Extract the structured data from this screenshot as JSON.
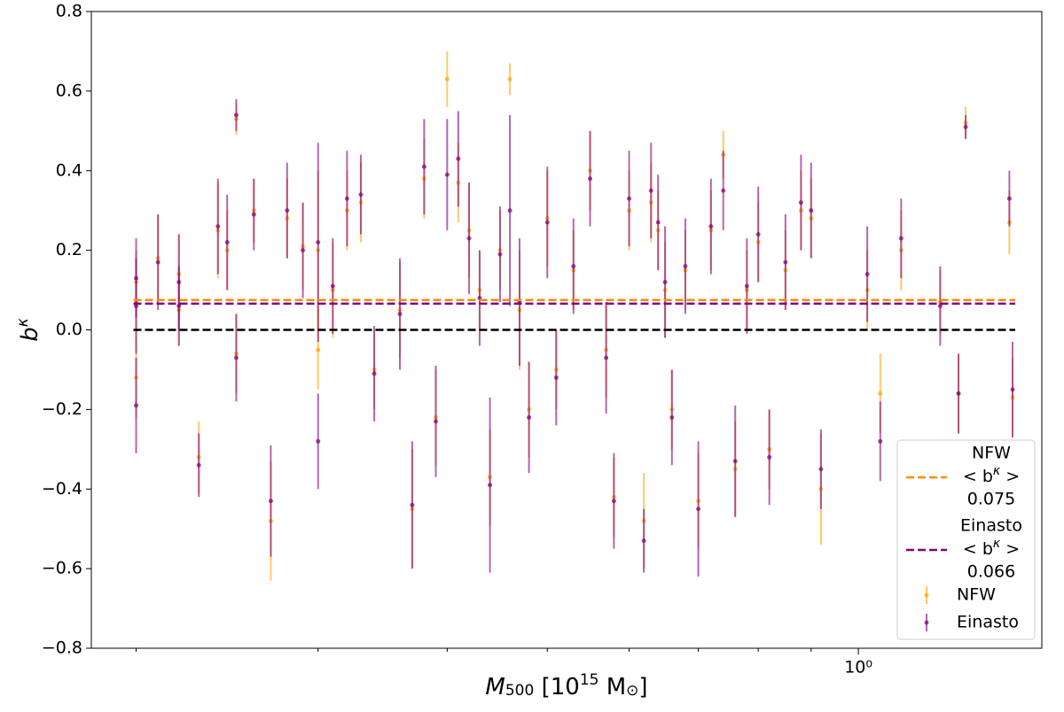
{
  "chart_data": {
    "type": "errorbar-scatter",
    "xlabel": [
      "M",
      "500",
      " [10",
      "15",
      " M",
      "⊙",
      "]"
    ],
    "ylabel": [
      "b",
      "κ"
    ],
    "xscale": "log",
    "xlim": [
      0.181,
      1.505
    ],
    "xticks": [
      {
        "value": 1,
        "label": "10⁰"
      }
    ],
    "xminorticks": [
      0.2,
      0.3,
      0.4,
      0.5,
      0.6,
      0.7,
      0.8,
      0.9
    ],
    "ylim": [
      -0.8,
      0.8
    ],
    "yticks": [
      {
        "value": -0.8,
        "label": "−0.8"
      },
      {
        "value": -0.6,
        "label": "−0.6"
      },
      {
        "value": -0.4,
        "label": "−0.4"
      },
      {
        "value": -0.2,
        "label": "−0.2"
      },
      {
        "value": 0,
        "label": "0.0"
      },
      0.2,
      0.4,
      0.6,
      0.8
    ],
    "reference_line": {
      "value": 0,
      "color": "#000000"
    },
    "mean_symbol": [
      "< b",
      "κ",
      " >"
    ],
    "mean_lines": [
      {
        "name": "NFW",
        "value": 0.075,
        "color": "#ff8c00"
      },
      {
        "name": "Einasto",
        "value": 0.066,
        "color": "#800080"
      }
    ],
    "legend": "lower right",
    "x": [
      0.2,
      0.2,
      0.2,
      0.21,
      0.22,
      0.22,
      0.23,
      0.24,
      0.245,
      0.25,
      0.25,
      0.26,
      0.27,
      0.28,
      0.29,
      0.3,
      0.3,
      0.31,
      0.32,
      0.33,
      0.34,
      0.36,
      0.37,
      0.38,
      0.39,
      0.4,
      0.41,
      0.42,
      0.43,
      0.44,
      0.45,
      0.46,
      0.47,
      0.48,
      0.5,
      0.51,
      0.53,
      0.55,
      0.57,
      0.58,
      0.6,
      0.62,
      0.63,
      0.64,
      0.65,
      0.66,
      0.68,
      0.7,
      0.72,
      0.74,
      0.76,
      0.78,
      0.8,
      0.82,
      0.85,
      0.88,
      0.9,
      0.92,
      1.02,
      1.05,
      1.1,
      1.2,
      1.25,
      1.27,
      1.4,
      1.41
    ],
    "series": [
      {
        "name": "NFW",
        "color": "#ffa500",
        "values": [
          0.07,
          -0.12,
          0.12,
          0.18,
          0.05,
          0.14,
          -0.32,
          0.25,
          0.2,
          0.53,
          -0.06,
          0.3,
          -0.48,
          0.28,
          0.21,
          0.2,
          -0.05,
          0.1,
          0.3,
          0.32,
          -0.1,
          0.05,
          -0.45,
          0.38,
          -0.22,
          0.63,
          0.37,
          0.25,
          0.1,
          -0.37,
          0.2,
          0.63,
          0.05,
          -0.2,
          0.28,
          -0.1,
          0.15,
          0.4,
          -0.05,
          -0.42,
          0.3,
          -0.48,
          0.32,
          0.25,
          0.1,
          -0.2,
          0.15,
          -0.43,
          0.25,
          0.44,
          -0.35,
          0.1,
          0.22,
          -0.3,
          0.15,
          0.3,
          0.28,
          -0.4,
          0.1,
          -0.16,
          0.2,
          0.07,
          -0.16,
          0.52,
          0.27,
          -0.17
        ],
        "errors": [
          0.1,
          0.1,
          0.08,
          0.11,
          0.09,
          0.1,
          0.09,
          0.12,
          0.1,
          0.04,
          0.1,
          0.08,
          0.15,
          0.1,
          0.11,
          0.2,
          0.1,
          0.12,
          0.1,
          0.1,
          0.1,
          0.12,
          0.15,
          0.1,
          0.12,
          0.07,
          0.1,
          0.12,
          0.1,
          0.12,
          0.1,
          0.04,
          0.15,
          0.12,
          0.12,
          0.1,
          0.1,
          0.1,
          0.12,
          0.1,
          0.1,
          0.12,
          0.1,
          0.1,
          0.12,
          0.1,
          0.1,
          0.12,
          0.1,
          0.06,
          0.12,
          0.1,
          0.1,
          0.1,
          0.1,
          0.1,
          0.1,
          0.14,
          0.1,
          0.1,
          0.1,
          0.08,
          0.1,
          0.04,
          0.08,
          0.1
        ]
      },
      {
        "name": "Einasto",
        "color": "#800080",
        "values": [
          0.06,
          -0.19,
          0.13,
          0.17,
          0.06,
          0.12,
          -0.34,
          0.26,
          0.22,
          0.54,
          -0.07,
          0.29,
          -0.43,
          0.3,
          0.2,
          0.22,
          -0.28,
          0.11,
          0.33,
          0.34,
          -0.11,
          0.04,
          -0.44,
          0.41,
          -0.23,
          0.39,
          0.43,
          0.23,
          0.08,
          -0.39,
          0.19,
          0.3,
          0.07,
          -0.22,
          0.27,
          -0.12,
          0.16,
          0.38,
          -0.07,
          -0.43,
          0.33,
          -0.53,
          0.35,
          0.27,
          0.12,
          -0.22,
          0.16,
          -0.45,
          0.26,
          0.35,
          -0.33,
          0.11,
          0.24,
          -0.32,
          0.17,
          0.32,
          0.3,
          -0.35,
          0.14,
          -0.28,
          0.23,
          0.06,
          -0.16,
          0.51,
          0.33,
          -0.15
        ],
        "errors": [
          0.12,
          0.12,
          0.1,
          0.12,
          0.1,
          0.12,
          0.08,
          0.12,
          0.12,
          0.04,
          0.11,
          0.09,
          0.14,
          0.12,
          0.12,
          0.25,
          0.12,
          0.12,
          0.12,
          0.1,
          0.12,
          0.14,
          0.16,
          0.12,
          0.14,
          0.14,
          0.12,
          0.14,
          0.12,
          0.22,
          0.12,
          0.24,
          0.16,
          0.14,
          0.14,
          0.12,
          0.12,
          0.12,
          0.14,
          0.12,
          0.12,
          0.08,
          0.12,
          0.12,
          0.14,
          0.12,
          0.12,
          0.17,
          0.12,
          0.1,
          0.14,
          0.12,
          0.12,
          0.12,
          0.12,
          0.12,
          0.12,
          0.1,
          0.12,
          0.1,
          0.1,
          0.1,
          0.1,
          0.03,
          0.07,
          0.12
        ]
      }
    ]
  }
}
